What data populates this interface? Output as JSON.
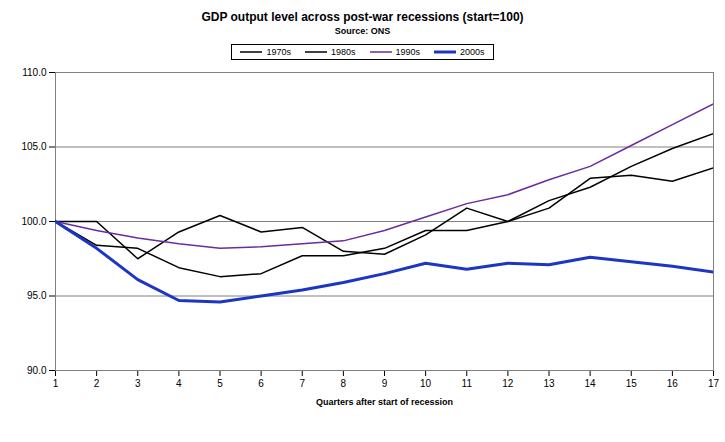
{
  "chart_data": {
    "type": "line",
    "title": "GDP output level across post-war recessions (start=100)",
    "subtitle": "Source: ONS",
    "x_label": "Quarters after start of recession",
    "x": [
      1,
      2,
      3,
      4,
      5,
      6,
      7,
      8,
      9,
      10,
      11,
      12,
      13,
      14,
      15,
      16,
      17
    ],
    "series": [
      {
        "name": "1970s",
        "color": "#000000",
        "line_style": "solid",
        "values": [
          100,
          100,
          97.5,
          99.3,
          100.4,
          99.3,
          99.6,
          98.0,
          97.8,
          99.1,
          100.9,
          100.0,
          100.9,
          102.9,
          103.1,
          102.7,
          103.6
        ]
      },
      {
        "name": "1980s",
        "color": "#000000",
        "line_style": "solid",
        "values": [
          100,
          98.4,
          98.2,
          96.9,
          96.3,
          96.5,
          97.7,
          97.7,
          98.2,
          99.4,
          99.4,
          100.0,
          101.4,
          102.3,
          103.7,
          104.9,
          105.9
        ]
      },
      {
        "name": "1990s",
        "color": "#6a2c9e",
        "line_style": "solid",
        "values": [
          100,
          99.4,
          98.9,
          98.5,
          98.2,
          98.3,
          98.5,
          98.7,
          99.4,
          100.3,
          101.2,
          101.8,
          102.8,
          103.7,
          105.1,
          106.5,
          107.9
        ]
      },
      {
        "name": "2000s",
        "color": "#1c35c4",
        "line_style": "thick",
        "values": [
          100,
          98.2,
          96.1,
          94.7,
          94.6,
          95.0,
          95.4,
          95.9,
          96.5,
          97.2,
          96.8,
          97.2,
          97.1,
          97.6,
          97.3,
          97.0,
          96.6
        ]
      }
    ],
    "xlim": [
      1,
      17
    ],
    "xticks": [
      1,
      2,
      3,
      4,
      5,
      6,
      7,
      8,
      9,
      10,
      11,
      12,
      13,
      14,
      15,
      16,
      17
    ],
    "ylim": [
      90,
      110
    ],
    "yticks": [
      {
        "value": 90,
        "label": "90.0"
      },
      {
        "value": 95,
        "label": "95.0"
      },
      {
        "value": 100,
        "label": "100.0"
      },
      {
        "value": 105,
        "label": "105.0"
      },
      {
        "value": 110,
        "label": "110.0"
      }
    ],
    "grid": true,
    "legend": "top"
  }
}
